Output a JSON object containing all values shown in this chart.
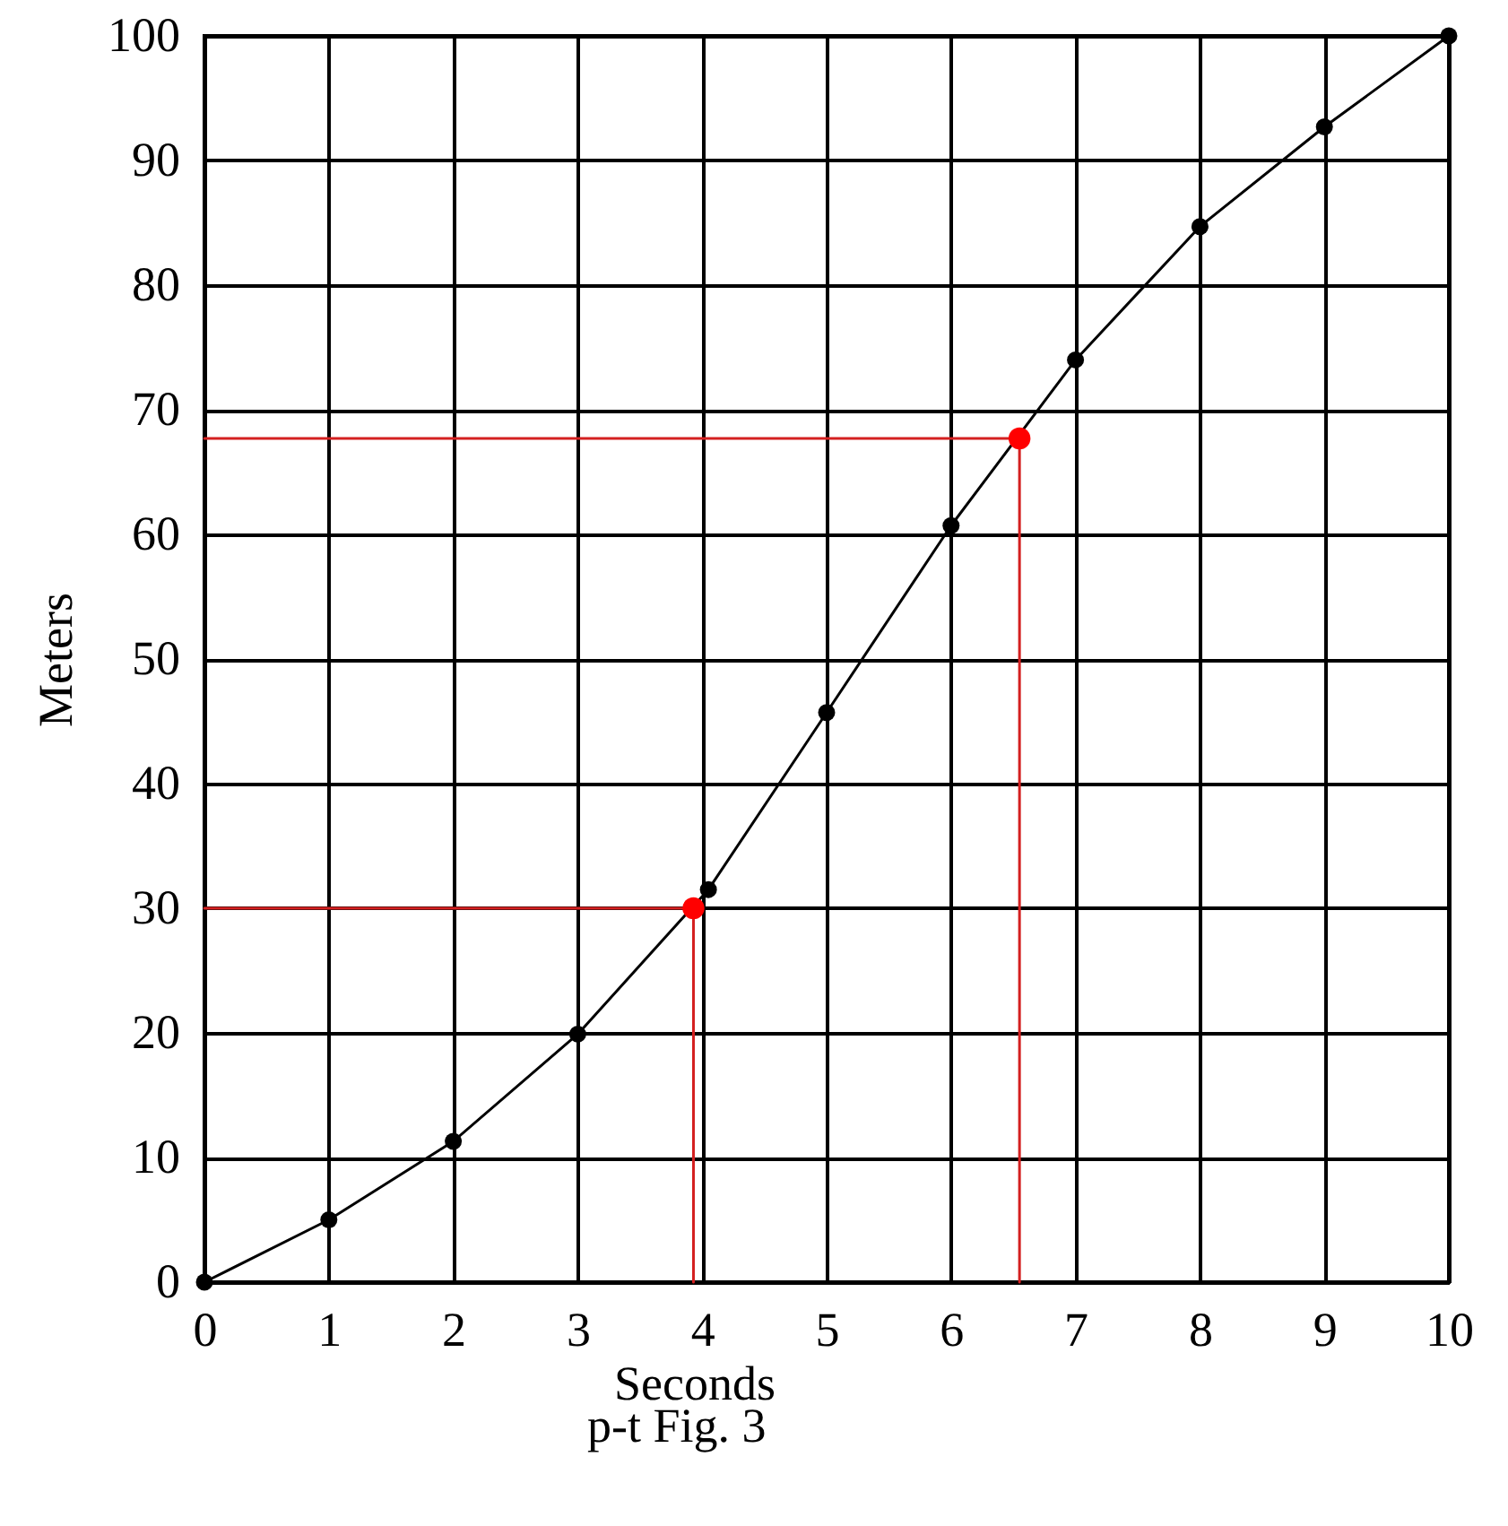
{
  "chart_data": {
    "type": "line",
    "xlabel": "Seconds",
    "ylabel": "Meters",
    "annotations": [
      "p-t Fig. 3"
    ],
    "xlim": [
      0,
      10
    ],
    "xticks": [
      0,
      1,
      2,
      3,
      4,
      5,
      6,
      7,
      8,
      9,
      10
    ],
    "ylim": [
      0,
      100
    ],
    "yticks": [
      0,
      10,
      20,
      30,
      40,
      50,
      60,
      70,
      80,
      90,
      100
    ],
    "grid": true,
    "series": [
      {
        "marker": "circle",
        "color": "#000000",
        "x": [
          0,
          1,
          2,
          3,
          4.05,
          5,
          6,
          7,
          8,
          9,
          10
        ],
        "values": [
          0,
          5,
          11.3,
          19.9,
          31.5,
          45.7,
          60.7,
          74,
          84.7,
          92.7,
          100
        ]
      },
      {
        "type": "line",
        "marker": "none",
        "color": "#d42020",
        "x": [
          0,
          3.93,
          3.93
        ],
        "values": [
          30,
          30,
          0
        ]
      },
      {
        "type": "line",
        "marker": "none",
        "color": "#d42020",
        "x": [
          0,
          6.55,
          6.55
        ],
        "values": [
          67.7,
          67.7,
          0
        ]
      },
      {
        "type": "scatter",
        "marker": "circle",
        "color": "#ff0000",
        "x": [
          3.93,
          6.55
        ],
        "values": [
          30,
          67.7
        ]
      }
    ]
  }
}
